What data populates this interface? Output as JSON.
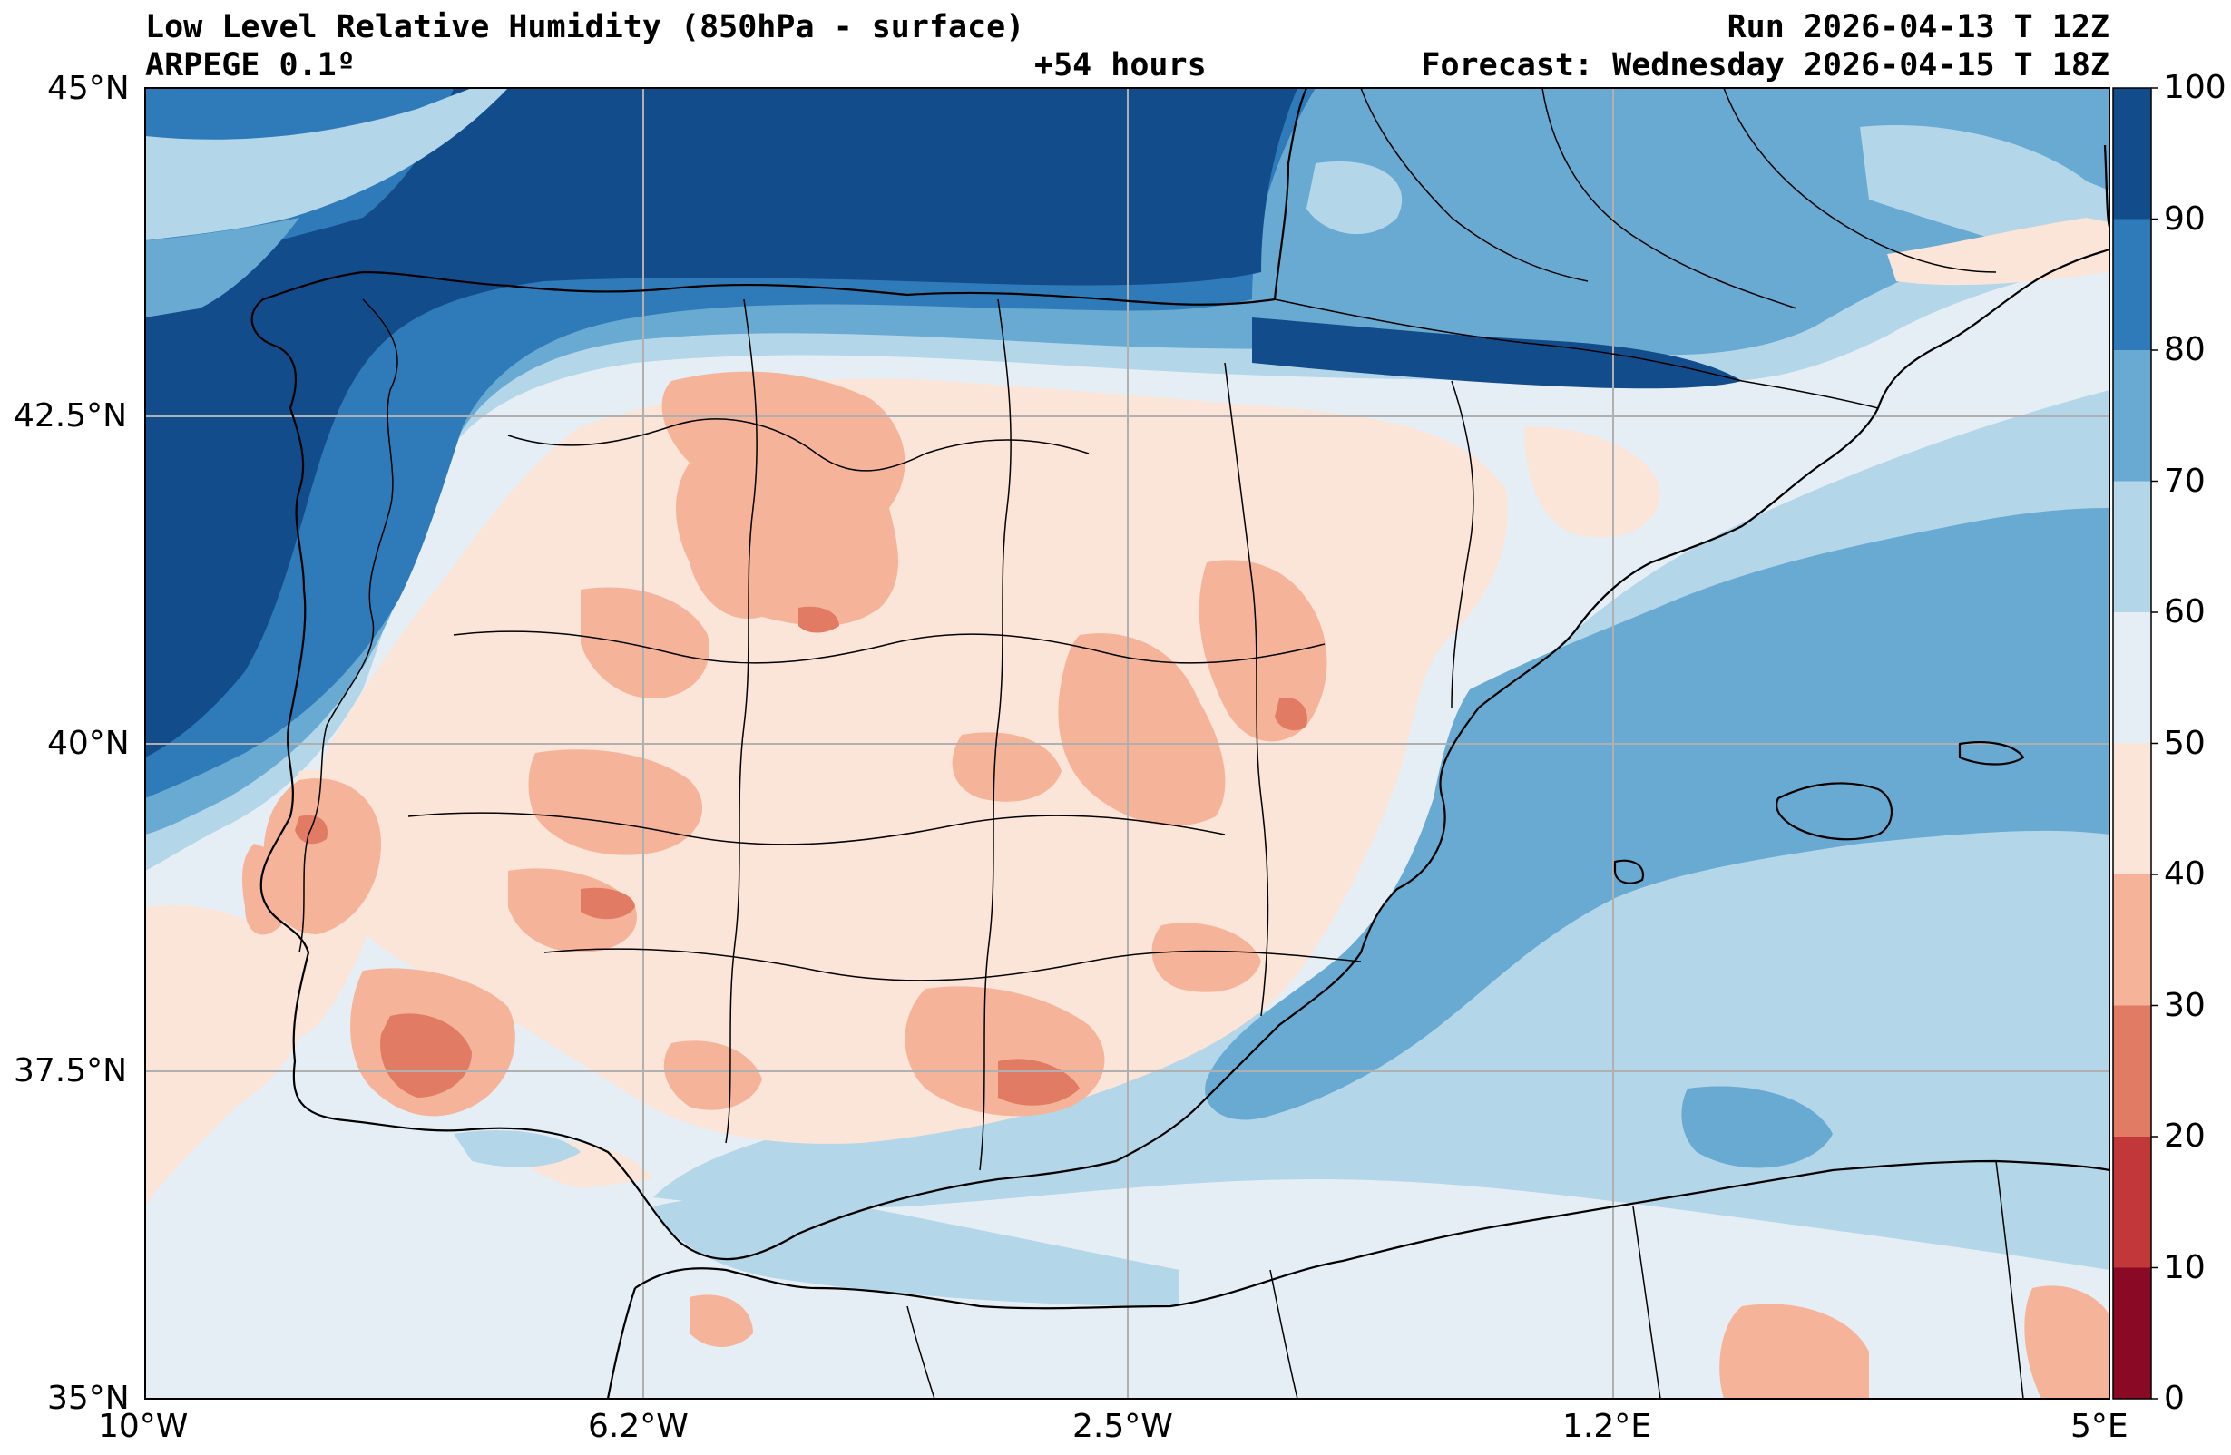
{
  "header": {
    "title": "Low Level Relative Humidity (850hPa - surface)",
    "model": "ARPEGE 0.1º",
    "lead_time": "+54 hours",
    "run": "Run 2026-04-13 T 12Z",
    "forecast": "Forecast: Wednesday 2026-04-15 T 18Z"
  },
  "map": {
    "extent": {
      "lon_min": -10,
      "lon_max": 5,
      "lat_min": 35,
      "lat_max": 45
    },
    "lat_ticks": [
      {
        "value": 45,
        "label": "45°N"
      },
      {
        "value": 42.5,
        "label": "42.5°N"
      },
      {
        "value": 40,
        "label": "40°N"
      },
      {
        "value": 37.5,
        "label": "37.5°N"
      },
      {
        "value": 35,
        "label": "35°N"
      }
    ],
    "lon_ticks": [
      {
        "value": -10,
        "label": "10°W"
      },
      {
        "value": -6.2,
        "label": "6.2°W"
      },
      {
        "value": -2.5,
        "label": "2.5°W"
      },
      {
        "value": 1.2,
        "label": "1.2°E"
      },
      {
        "value": 5,
        "label": "5°E"
      }
    ],
    "gridline_color": "#b0b0b0"
  },
  "colorbar": {
    "levels": [
      {
        "from": 0,
        "to": 10,
        "color": "#8a0a25"
      },
      {
        "from": 10,
        "to": 20,
        "color": "#c2383a"
      },
      {
        "from": 20,
        "to": 30,
        "color": "#e17b63"
      },
      {
        "from": 30,
        "to": 40,
        "color": "#f5b49a"
      },
      {
        "from": 40,
        "to": 50,
        "color": "#fbe4d8"
      },
      {
        "from": 50,
        "to": 60,
        "color": "#e6eef5"
      },
      {
        "from": 60,
        "to": 70,
        "color": "#b4d6e9"
      },
      {
        "from": 70,
        "to": 80,
        "color": "#69aad2"
      },
      {
        "from": 80,
        "to": 90,
        "color": "#2f7ab8"
      },
      {
        "from": 90,
        "to": 100,
        "color": "#124c8a"
      }
    ],
    "tick_labels": [
      "0",
      "10",
      "20",
      "30",
      "40",
      "50",
      "60",
      "70",
      "80",
      "90",
      "100"
    ]
  }
}
